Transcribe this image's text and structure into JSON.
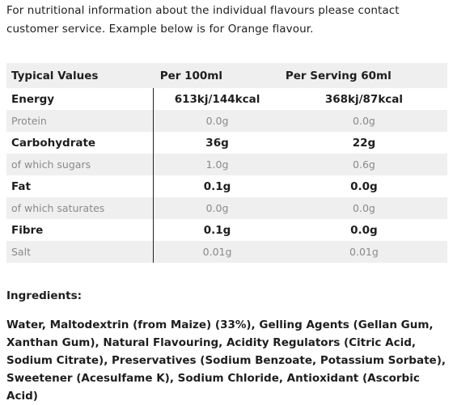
{
  "intro_text": "For nutritional information about the individual flavours please contact customer service. Example below is for Orange flavour.",
  "table": {
    "headers": [
      "Typical Values",
      "Per 100ml",
      "Per Serving 60ml"
    ],
    "rows": [
      {
        "label": "Energy",
        "per100": "613kj/144kcal",
        "serving": "368kj/87kcal",
        "style": "bold"
      },
      {
        "label": "Protein",
        "per100": "0.0g",
        "serving": "0.0g",
        "style": "light"
      },
      {
        "label": "Carbohydrate",
        "per100": "36g",
        "serving": "22g",
        "style": "bold"
      },
      {
        "label": "of which sugars",
        "per100": "1.0g",
        "serving": "0.6g",
        "style": "light"
      },
      {
        "label": "Fat",
        "per100": "0.1g",
        "serving": "0.0g",
        "style": "bold"
      },
      {
        "label": "of which saturates",
        "per100": "0.0g",
        "serving": "0.0g",
        "style": "light"
      },
      {
        "label": "Fibre",
        "per100": "0.1g",
        "serving": "0.0g",
        "style": "bold"
      },
      {
        "label": "Salt",
        "per100": "0.01g",
        "serving": "0.01g",
        "style": "light"
      }
    ]
  },
  "ingredients": {
    "title": "Ingredients:",
    "text": "Water, Maltodextrin (from Maize) (33%), Gelling Agents (Gellan Gum, Xanthan Gum), Natural Flavouring, Acidity Regulators (Citric Acid, Sodium Citrate), Preservatives (Sodium Benzoate, Potassium Sorbate), Sweetener (Acesulfame K), Sodium Chloride, Antioxidant (Ascorbic Acid)"
  }
}
